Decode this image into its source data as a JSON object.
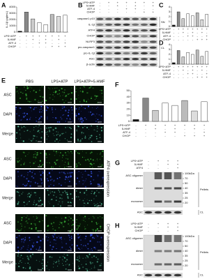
{
  "chart_data": [
    {
      "type": "bar",
      "panel": "A",
      "ylabel": "IL-1β (pg/mL)",
      "values": [
        150,
        3200,
        2100,
        1500,
        1200,
        2800,
        2500,
        2700
      ],
      "colors": [
        "#111111",
        "#888888",
        "#cccccc",
        "#ffffff",
        "#ffffff",
        "#bbbbbb",
        "#dddddd",
        "#ffffff"
      ],
      "ylim": [
        0,
        4000
      ],
      "yticks": [
        0,
        1000,
        2000,
        3000,
        4000
      ],
      "conditions": [
        {
          "label": "LPS+ATP",
          "signs": [
            "-",
            "+",
            "+",
            "+",
            "+",
            "+",
            "+",
            "+"
          ]
        },
        {
          "label": "5-HMF",
          "signs": [
            "-",
            "-",
            "+",
            "-",
            "+",
            "-",
            "+",
            "-"
          ]
        },
        {
          "label": "ATF-4",
          "signs": [
            "-",
            "-",
            "-",
            "+",
            "+",
            "-",
            "-",
            "+"
          ]
        },
        {
          "label": "CHOP",
          "signs": [
            "-",
            "-",
            "-",
            "-",
            "-",
            "+",
            "+",
            "+"
          ]
        }
      ]
    },
    {
      "type": "bar",
      "panel": "C",
      "values": [
        0.3,
        3.0,
        1.6,
        2.6,
        2.2,
        2.8,
        1.4,
        2.5
      ],
      "colors": [
        "#111111",
        "#888888",
        "#cccccc",
        "#ffffff",
        "#ffffff",
        "#bbbbbb",
        "#dddddd",
        "#ffffff"
      ],
      "ylim": [
        0,
        4
      ],
      "yticks": [
        0,
        1,
        2,
        3,
        4
      ],
      "conditions": [
        {
          "label": "LPS+ATP",
          "signs": [
            "-",
            "+",
            "+",
            "+",
            "+",
            "+",
            "+",
            "+"
          ]
        },
        {
          "label": "5-HMF",
          "signs": [
            "-",
            "-",
            "+",
            "-",
            "+",
            "-",
            "+",
            "-"
          ]
        },
        {
          "label": "ATF-4",
          "signs": [
            "-",
            "-",
            "-",
            "+",
            "+",
            "-",
            "-",
            "+"
          ]
        },
        {
          "label": "CHOP",
          "signs": [
            "-",
            "-",
            "-",
            "-",
            "-",
            "+",
            "+",
            "+"
          ]
        }
      ]
    },
    {
      "type": "bar",
      "panel": "D",
      "values": [
        0.3,
        2.8,
        1.5,
        2.4,
        2.0,
        2.9,
        1.6,
        2.6
      ],
      "colors": [
        "#111111",
        "#888888",
        "#cccccc",
        "#ffffff",
        "#ffffff",
        "#bbbbbb",
        "#dddddd",
        "#ffffff"
      ],
      "ylim": [
        0,
        4
      ],
      "yticks": [
        0,
        1,
        2,
        3,
        4
      ],
      "conditions": [
        {
          "label": "LPS+ATP",
          "signs": [
            "-",
            "+",
            "+",
            "+",
            "+",
            "+",
            "+",
            "+"
          ]
        },
        {
          "label": "5-HMF",
          "signs": [
            "-",
            "-",
            "+",
            "-",
            "+",
            "-",
            "+",
            "-"
          ]
        },
        {
          "label": "ATF-4",
          "signs": [
            "-",
            "-",
            "-",
            "+",
            "+",
            "-",
            "-",
            "+"
          ]
        },
        {
          "label": "CHOP",
          "signs": [
            "-",
            "-",
            "-",
            "-",
            "-",
            "+",
            "+",
            "+"
          ]
        }
      ]
    },
    {
      "type": "bar",
      "panel": "F",
      "values": [
        3,
        38,
        18,
        30,
        26,
        34,
        17,
        32
      ],
      "colors": [
        "#111111",
        "#888888",
        "#cccccc",
        "#ffffff",
        "#ffffff",
        "#bbbbbb",
        "#dddddd",
        "#ffffff"
      ],
      "ylim": [
        0,
        50
      ],
      "yticks": [
        0,
        10,
        20,
        30,
        40,
        50
      ],
      "conditions": [
        {
          "label": "LPS+ATP",
          "signs": [
            "-",
            "+",
            "+",
            "+",
            "+",
            "+",
            "+",
            "+"
          ]
        },
        {
          "label": "5-HMF",
          "signs": [
            "-",
            "-",
            "+",
            "-",
            "+",
            "-",
            "+",
            "-"
          ]
        },
        {
          "label": "ATF-4",
          "signs": [
            "-",
            "-",
            "-",
            "+",
            "+",
            "-",
            "-",
            "+"
          ]
        },
        {
          "label": "CHOP",
          "signs": [
            "-",
            "-",
            "-",
            "-",
            "-",
            "+",
            "+",
            "+"
          ]
        }
      ]
    }
  ],
  "blots": [
    {
      "panel": "B",
      "conditions": [
        {
          "label": "LPS+ATP",
          "signs": [
            "-",
            "+",
            "+",
            "+",
            "+",
            "+",
            "+"
          ]
        },
        {
          "label": "5-HMF",
          "signs": [
            "-",
            "-",
            "+",
            "-",
            "+",
            "-",
            "+"
          ]
        },
        {
          "label": "ATF-4",
          "signs": [
            "-",
            "-",
            "-",
            "+",
            "+",
            "-",
            "-"
          ]
        },
        {
          "label": "CHOP",
          "signs": [
            "-",
            "-",
            "-",
            "-",
            "-",
            "+",
            "+"
          ]
        }
      ],
      "rows": [
        "caspase1 p10",
        "IL-1β",
        "ATF4",
        "CHOP",
        "NLRP3",
        "pro-caspase1",
        "pro-IL-1β",
        "ASC",
        "β-actin"
      ],
      "sections": [
        "SN",
        "CL"
      ]
    },
    {
      "panel": "G",
      "conditions": [
        {
          "label": "LPS+ATP",
          "signs": [
            "-",
            "+",
            "+",
            "+"
          ]
        },
        {
          "label": "5-HMF",
          "signs": [
            "-",
            "-",
            "+",
            "+"
          ]
        },
        {
          "label": "ATF4",
          "signs": [
            "-",
            "-",
            "-",
            "+"
          ]
        }
      ],
      "rows": [
        "ASC oligomer",
        "dimer",
        "monomer"
      ],
      "markers": [
        "100kDa",
        "70",
        "50",
        "40",
        "35",
        "25",
        "20"
      ],
      "sections": [
        "Pellets",
        "CL"
      ],
      "bottom": "ASC"
    },
    {
      "panel": "H",
      "conditions": [
        {
          "label": "LPS+ATP",
          "signs": [
            "-",
            "+",
            "+",
            "+"
          ]
        },
        {
          "label": "5-HMF",
          "signs": [
            "-",
            "-",
            "+",
            "+"
          ]
        },
        {
          "label": "CHOP",
          "signs": [
            "-",
            "-",
            "-",
            "+"
          ]
        }
      ],
      "rows": [
        "ASC oligomer",
        "dimer",
        "monomer"
      ],
      "markers": [
        "100kDa",
        "70",
        "50",
        "40",
        "35",
        "25",
        "20"
      ],
      "sections": [
        "Pellets",
        "CL"
      ],
      "bottom": "ASC"
    }
  ],
  "images": {
    "panel": "E",
    "columns": [
      "PBS",
      "LPS+ATP",
      "LPS+ATP+5-HMF"
    ],
    "groups": [
      {
        "rows": [
          "ASC",
          "DAPI",
          "Merge"
        ]
      },
      {
        "rows": [
          "ASC",
          "DAPI",
          "Merge"
        ],
        "label": "ATF4 overexpression"
      },
      {
        "rows": [
          "ASC",
          "DAPI",
          "Merge"
        ],
        "label": "CHOP overexpression"
      }
    ]
  }
}
